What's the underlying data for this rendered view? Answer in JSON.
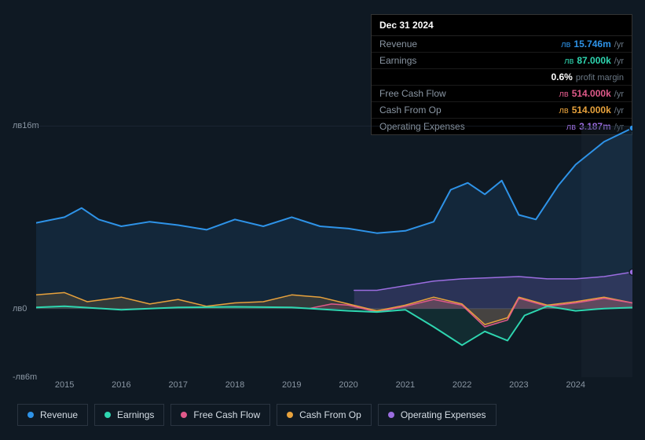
{
  "tooltip": {
    "header": "Dec 31 2024",
    "rows": [
      {
        "label": "Revenue",
        "currency": "лв",
        "amount": "15.746m",
        "color": "#2e93e8",
        "suffix": "/yr"
      },
      {
        "label": "Earnings",
        "currency": "лв",
        "amount": "87.000k",
        "color": "#2ed6b0",
        "suffix": "/yr"
      },
      {
        "label": "",
        "currency": "",
        "amount": "0.6%",
        "color": "#ffffff",
        "suffix": "",
        "note": "profit margin"
      },
      {
        "label": "Free Cash Flow",
        "currency": "лв",
        "amount": "514.000k",
        "color": "#e05a8a",
        "suffix": "/yr"
      },
      {
        "label": "Cash From Op",
        "currency": "лв",
        "amount": "514.000k",
        "color": "#e8a23c",
        "suffix": "/yr"
      },
      {
        "label": "Operating Expenses",
        "currency": "лв",
        "amount": "3.187m",
        "color": "#9b6de0",
        "suffix": "/yr"
      }
    ]
  },
  "chart": {
    "type": "area-line",
    "background_color": "#0f1923",
    "ylim": [
      -6,
      16
    ],
    "yticks": [
      {
        "v": 16,
        "label": "лв16m"
      },
      {
        "v": 0,
        "label": "лв0"
      },
      {
        "v": -6,
        "label": "-лв6m"
      }
    ],
    "xlim": [
      2014.5,
      2025
    ],
    "xticks": [
      2015,
      2016,
      2017,
      2018,
      2019,
      2020,
      2021,
      2022,
      2023,
      2024
    ],
    "grid_color": "#1a2632",
    "series": {
      "revenue": {
        "color": "#2e93e8",
        "fill_opacity": 0.12,
        "line_width": 2,
        "data": [
          [
            2014.5,
            7.5
          ],
          [
            2015.0,
            8.0
          ],
          [
            2015.3,
            8.8
          ],
          [
            2015.6,
            7.8
          ],
          [
            2016.0,
            7.2
          ],
          [
            2016.5,
            7.6
          ],
          [
            2017.0,
            7.3
          ],
          [
            2017.5,
            6.9
          ],
          [
            2018.0,
            7.8
          ],
          [
            2018.5,
            7.2
          ],
          [
            2019.0,
            8.0
          ],
          [
            2019.5,
            7.2
          ],
          [
            2020.0,
            7.0
          ],
          [
            2020.5,
            6.6
          ],
          [
            2021.0,
            6.8
          ],
          [
            2021.5,
            7.6
          ],
          [
            2021.8,
            10.4
          ],
          [
            2022.1,
            11.0
          ],
          [
            2022.4,
            10.0
          ],
          [
            2022.7,
            11.2
          ],
          [
            2023.0,
            8.2
          ],
          [
            2023.3,
            7.8
          ],
          [
            2023.7,
            10.8
          ],
          [
            2024.0,
            12.6
          ],
          [
            2024.5,
            14.6
          ],
          [
            2025.0,
            15.8
          ]
        ],
        "end_marker": true
      },
      "earnings": {
        "color": "#2ed6b0",
        "fill_opacity": 0.1,
        "line_width": 2,
        "data": [
          [
            2014.5,
            0.1
          ],
          [
            2015,
            0.2
          ],
          [
            2016,
            -0.1
          ],
          [
            2017,
            0.1
          ],
          [
            2018,
            0.15
          ],
          [
            2019,
            0.1
          ],
          [
            2020,
            -0.2
          ],
          [
            2020.5,
            -0.3
          ],
          [
            2021,
            -0.1
          ],
          [
            2021.5,
            -1.6
          ],
          [
            2022,
            -3.2
          ],
          [
            2022.4,
            -2.0
          ],
          [
            2022.8,
            -2.8
          ],
          [
            2023.1,
            -0.6
          ],
          [
            2023.5,
            0.2
          ],
          [
            2024,
            -0.2
          ],
          [
            2024.5,
            0.0
          ],
          [
            2025,
            0.09
          ]
        ]
      },
      "fcf": {
        "color": "#e05a8a",
        "fill_opacity": 0.15,
        "line_width": 1.5,
        "data": [
          [
            2019.3,
            0.0
          ],
          [
            2019.7,
            0.4
          ],
          [
            2020,
            0.3
          ],
          [
            2020.5,
            -0.3
          ],
          [
            2021,
            0.2
          ],
          [
            2021.5,
            0.8
          ],
          [
            2022,
            0.3
          ],
          [
            2022.4,
            -1.6
          ],
          [
            2022.8,
            -1.0
          ],
          [
            2023,
            0.9
          ],
          [
            2023.5,
            0.2
          ],
          [
            2024,
            0.5
          ],
          [
            2024.5,
            0.9
          ],
          [
            2025,
            0.5
          ]
        ]
      },
      "cfo": {
        "color": "#e8a23c",
        "fill_opacity": 0.15,
        "line_width": 1.5,
        "data": [
          [
            2014.5,
            1.2
          ],
          [
            2015,
            1.4
          ],
          [
            2015.4,
            0.6
          ],
          [
            2016,
            1.0
          ],
          [
            2016.5,
            0.4
          ],
          [
            2017,
            0.8
          ],
          [
            2017.5,
            0.2
          ],
          [
            2018,
            0.5
          ],
          [
            2018.5,
            0.6
          ],
          [
            2019,
            1.2
          ],
          [
            2019.5,
            1.0
          ],
          [
            2020,
            0.4
          ],
          [
            2020.5,
            -0.2
          ],
          [
            2021,
            0.3
          ],
          [
            2021.5,
            1.0
          ],
          [
            2022,
            0.4
          ],
          [
            2022.4,
            -1.4
          ],
          [
            2022.8,
            -0.8
          ],
          [
            2023,
            1.0
          ],
          [
            2023.5,
            0.3
          ],
          [
            2024,
            0.6
          ],
          [
            2024.5,
            1.0
          ],
          [
            2025,
            0.5
          ]
        ]
      },
      "opex": {
        "color": "#9b6de0",
        "fill_opacity": 0.18,
        "line_width": 1.5,
        "data": [
          [
            2020.1,
            1.6
          ],
          [
            2020.5,
            1.6
          ],
          [
            2021,
            2.0
          ],
          [
            2021.5,
            2.4
          ],
          [
            2022,
            2.6
          ],
          [
            2022.5,
            2.7
          ],
          [
            2023,
            2.8
          ],
          [
            2023.5,
            2.6
          ],
          [
            2024,
            2.6
          ],
          [
            2024.5,
            2.8
          ],
          [
            2025,
            3.19
          ]
        ],
        "end_marker": true
      }
    },
    "legend": [
      {
        "key": "revenue",
        "label": "Revenue",
        "color": "#2e93e8"
      },
      {
        "key": "earnings",
        "label": "Earnings",
        "color": "#2ed6b0"
      },
      {
        "key": "fcf",
        "label": "Free Cash Flow",
        "color": "#e05a8a"
      },
      {
        "key": "cfo",
        "label": "Cash From Op",
        "color": "#e8a23c"
      },
      {
        "key": "opex",
        "label": "Operating Expenses",
        "color": "#9b6de0"
      }
    ]
  }
}
